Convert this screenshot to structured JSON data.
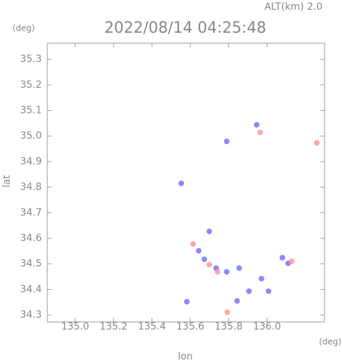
{
  "chart_data": {
    "type": "scatter",
    "title": "2022/08/14 04:25:48",
    "subtitle": "ALT(km) 2.0",
    "y_unit": "(deg)",
    "x_unit": "(deg)",
    "x_label": "lon",
    "y_label": "lat",
    "xlim": [
      134.855,
      136.3
    ],
    "ylim": [
      34.273,
      35.363
    ],
    "xticks": [
      {
        "value": 135,
        "label": "135.0"
      },
      135.2,
      135.4,
      135.6,
      135.8,
      {
        "value": 136,
        "label": "136.0"
      }
    ],
    "yticks": [
      34.3,
      34.4,
      34.5,
      34.6,
      34.7,
      34.8,
      34.9,
      {
        "value": 35,
        "label": "35.0"
      },
      35.1,
      35.2,
      35.3
    ],
    "series": [
      {
        "color": "#6a6aff",
        "x": [
          135.79,
          135.946,
          135.553,
          135.699,
          135.673,
          135.735,
          135.79,
          135.855,
          135.906,
          136.008,
          135.844,
          135.971,
          136.08,
          136.11,
          135.582,
          135.644
        ],
        "values": [
          34.979,
          35.044,
          34.815,
          34.627,
          34.518,
          34.483,
          34.469,
          34.483,
          34.393,
          34.393,
          34.355,
          34.442,
          34.524,
          34.502,
          34.352,
          34.551
        ]
      },
      {
        "color": "#ff9090",
        "x": [
          135.615,
          136.259,
          135.964,
          135.742,
          135.699,
          135.793,
          136.128
        ],
        "values": [
          34.578,
          34.973,
          35.014,
          34.469,
          34.497,
          34.311,
          34.51
        ]
      }
    ]
  }
}
